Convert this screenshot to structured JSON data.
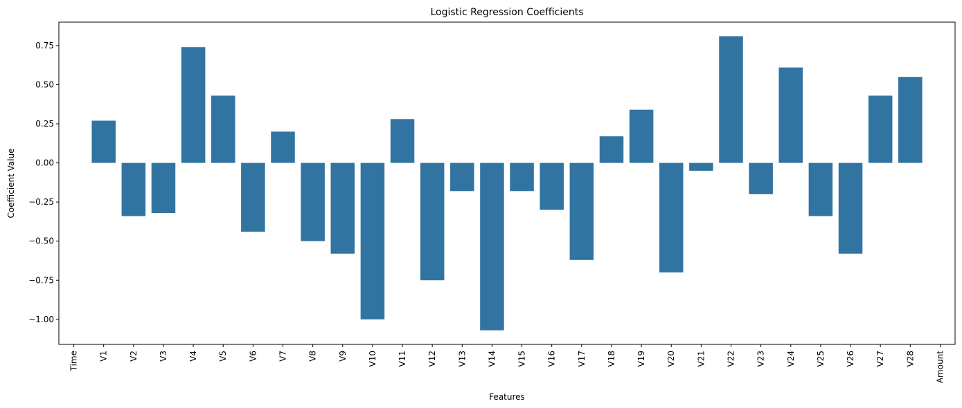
{
  "chart_data": {
    "type": "bar",
    "title": "Logistic Regression Coefficients",
    "xlabel": "Features",
    "ylabel": "Coefficient Value",
    "categories": [
      "Time",
      "V1",
      "V2",
      "V3",
      "V4",
      "V5",
      "V6",
      "V7",
      "V8",
      "V9",
      "V10",
      "V11",
      "V12",
      "V13",
      "V14",
      "V15",
      "V16",
      "V17",
      "V18",
      "V19",
      "V20",
      "V21",
      "V22",
      "V23",
      "V24",
      "V25",
      "V26",
      "V27",
      "V28",
      "Amount"
    ],
    "values": [
      0.0,
      0.27,
      -0.34,
      -0.32,
      0.74,
      0.43,
      -0.44,
      0.2,
      -0.5,
      -0.58,
      -1.0,
      0.28,
      -0.75,
      -0.18,
      -1.07,
      -0.18,
      -0.3,
      -0.62,
      0.17,
      0.34,
      -0.7,
      -0.05,
      0.81,
      -0.2,
      0.61,
      -0.34,
      -0.58,
      0.43,
      0.55,
      0.0
    ],
    "ylim": [
      -1.16,
      0.9
    ],
    "yticks": [
      -1.0,
      -0.75,
      -0.5,
      -0.25,
      0.0,
      0.25,
      0.5,
      0.75
    ],
    "ytick_labels": [
      "−1.00",
      "−0.75",
      "−0.50",
      "−0.25",
      "0.00",
      "0.25",
      "0.50",
      "0.75"
    ],
    "grid": false,
    "bar_color": "#3274a1"
  }
}
